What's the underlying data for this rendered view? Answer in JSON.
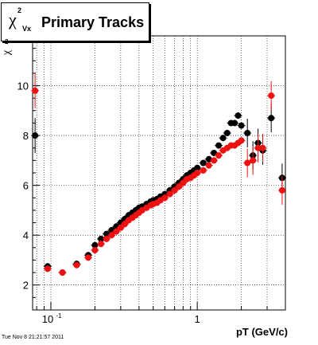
{
  "title": {
    "symbol": "χ",
    "sup": "2",
    "sub": "Vx",
    "text": "Primary Tracks"
  },
  "axes": {
    "xlabel": "pT (GeV/c)",
    "ylabel_symbol": "χ",
    "ylabel_sup": "2"
  },
  "timestamp": "Tue Nov  8 21:21:57 2011",
  "colors": {
    "black_series": "#000000",
    "red_series": "#ee1111"
  },
  "chart_data": {
    "type": "scatter",
    "xscale": "log",
    "xlim": [
      0.075,
      4.0
    ],
    "ylim": [
      1.0,
      12.0
    ],
    "grid": true,
    "xticks": [
      {
        "value": 0.1,
        "label": "10",
        "sup": "-1"
      },
      {
        "value": 1,
        "label": "1",
        "sup": ""
      }
    ],
    "yticks": [
      2,
      4,
      6,
      8,
      10
    ],
    "series": [
      {
        "color": "black",
        "points": [
          [
            0.078,
            8.0
          ],
          [
            0.095,
            2.75
          ],
          [
            0.12,
            2.5
          ],
          [
            0.15,
            2.85
          ],
          [
            0.18,
            3.2
          ],
          [
            0.2,
            3.6
          ],
          [
            0.22,
            3.85
          ],
          [
            0.24,
            4.05
          ],
          [
            0.26,
            4.2
          ],
          [
            0.28,
            4.35
          ],
          [
            0.3,
            4.5
          ],
          [
            0.32,
            4.65
          ],
          [
            0.34,
            4.8
          ],
          [
            0.36,
            4.9
          ],
          [
            0.38,
            5.0
          ],
          [
            0.4,
            5.1
          ],
          [
            0.42,
            5.15
          ],
          [
            0.45,
            5.25
          ],
          [
            0.48,
            5.35
          ],
          [
            0.5,
            5.4
          ],
          [
            0.53,
            5.45
          ],
          [
            0.56,
            5.55
          ],
          [
            0.6,
            5.65
          ],
          [
            0.65,
            5.8
          ],
          [
            0.7,
            5.95
          ],
          [
            0.75,
            6.1
          ],
          [
            0.8,
            6.25
          ],
          [
            0.85,
            6.4
          ],
          [
            0.9,
            6.5
          ],
          [
            0.95,
            6.6
          ],
          [
            1.0,
            6.7
          ],
          [
            1.1,
            6.9
          ],
          [
            1.2,
            7.05
          ],
          [
            1.3,
            7.3
          ],
          [
            1.4,
            7.6
          ],
          [
            1.5,
            7.9
          ],
          [
            1.6,
            8.1
          ],
          [
            1.7,
            8.5
          ],
          [
            1.8,
            8.5
          ],
          [
            1.9,
            8.8
          ],
          [
            2.0,
            8.4
          ],
          [
            2.2,
            8.1
          ],
          [
            2.4,
            7.2
          ],
          [
            2.6,
            7.7
          ],
          [
            2.8,
            7.4
          ],
          [
            3.2,
            8.7
          ],
          [
            3.8,
            6.3
          ]
        ]
      },
      {
        "color": "red",
        "points": [
          [
            0.078,
            9.8
          ],
          [
            0.095,
            2.65
          ],
          [
            0.12,
            2.5
          ],
          [
            0.15,
            2.8
          ],
          [
            0.18,
            3.1
          ],
          [
            0.2,
            3.4
          ],
          [
            0.22,
            3.65
          ],
          [
            0.24,
            3.85
          ],
          [
            0.26,
            4.0
          ],
          [
            0.28,
            4.15
          ],
          [
            0.3,
            4.3
          ],
          [
            0.32,
            4.45
          ],
          [
            0.34,
            4.6
          ],
          [
            0.36,
            4.7
          ],
          [
            0.38,
            4.8
          ],
          [
            0.4,
            4.9
          ],
          [
            0.42,
            5.0
          ],
          [
            0.45,
            5.1
          ],
          [
            0.48,
            5.2
          ],
          [
            0.5,
            5.25
          ],
          [
            0.53,
            5.3
          ],
          [
            0.56,
            5.4
          ],
          [
            0.6,
            5.5
          ],
          [
            0.65,
            5.65
          ],
          [
            0.7,
            5.8
          ],
          [
            0.75,
            5.95
          ],
          [
            0.8,
            6.1
          ],
          [
            0.85,
            6.25
          ],
          [
            0.9,
            6.3
          ],
          [
            0.95,
            6.4
          ],
          [
            1.0,
            6.5
          ],
          [
            1.1,
            6.6
          ],
          [
            1.2,
            6.8
          ],
          [
            1.3,
            7.0
          ],
          [
            1.4,
            7.2
          ],
          [
            1.5,
            7.4
          ],
          [
            1.6,
            7.5
          ],
          [
            1.7,
            7.6
          ],
          [
            1.8,
            7.6
          ],
          [
            1.9,
            7.7
          ],
          [
            2.0,
            7.8
          ],
          [
            2.2,
            6.9
          ],
          [
            2.4,
            7.0
          ],
          [
            2.6,
            7.5
          ],
          [
            2.8,
            7.5
          ],
          [
            3.2,
            9.6
          ],
          [
            3.8,
            5.8
          ]
        ]
      }
    ]
  }
}
